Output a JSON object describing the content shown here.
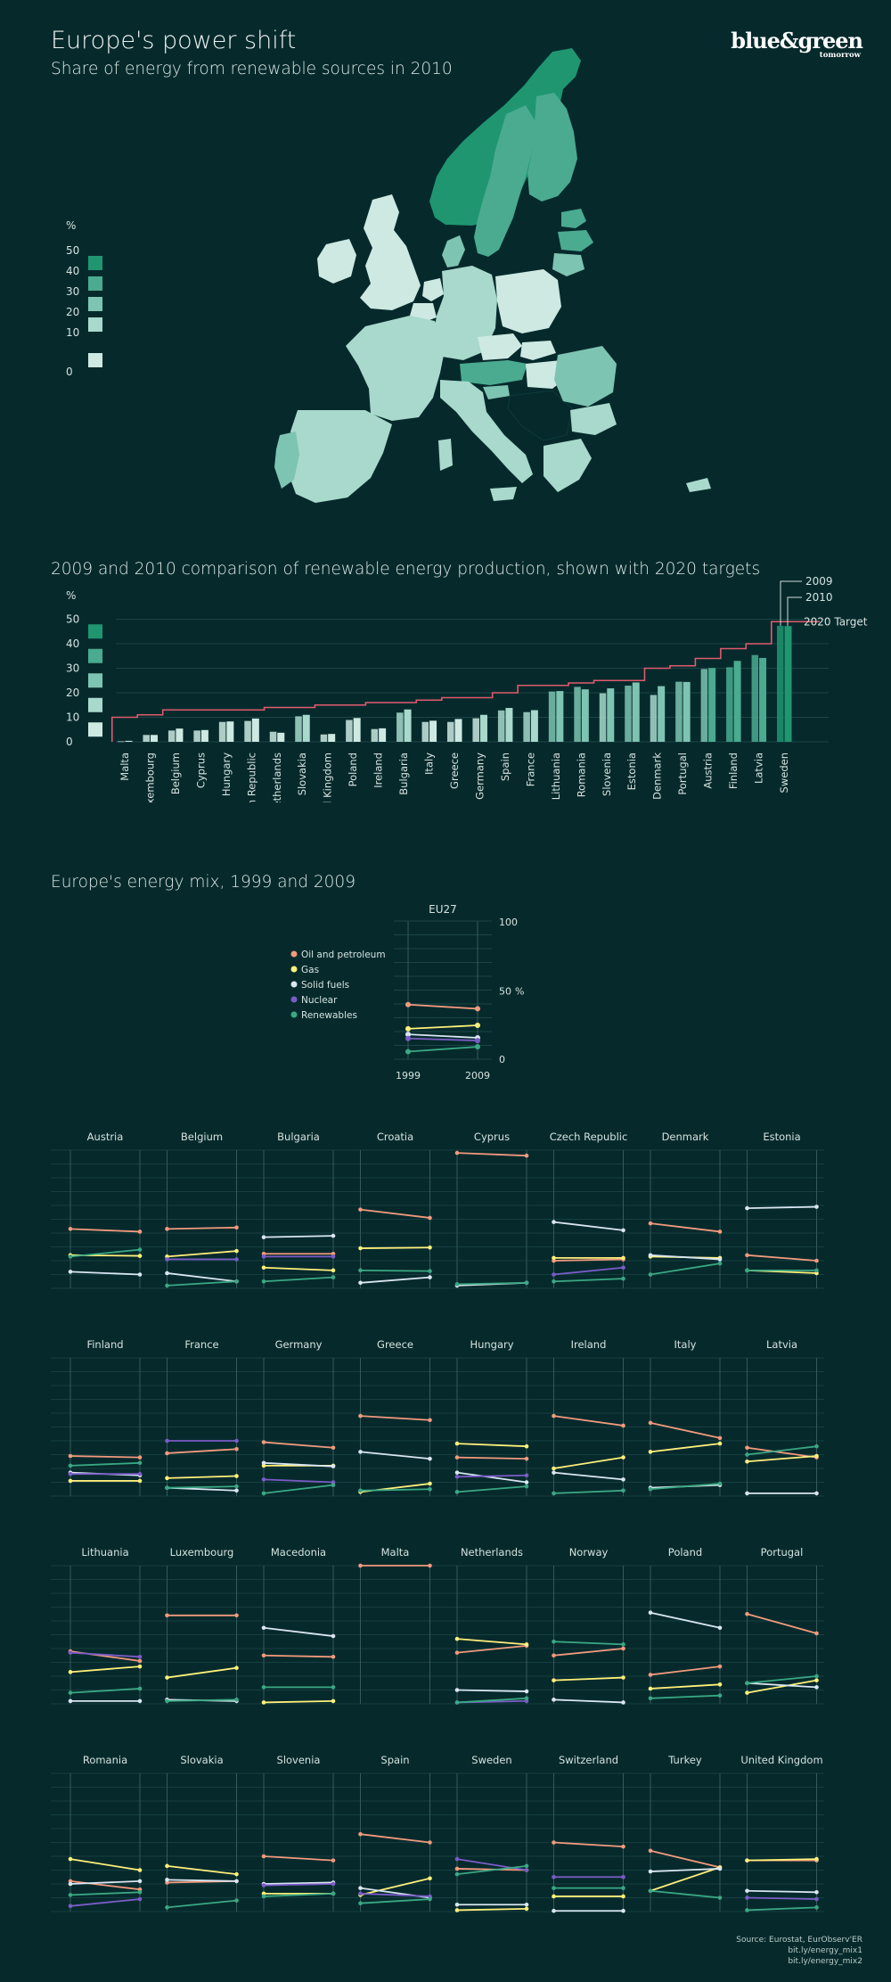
{
  "header": {
    "title": "Europe's power shift",
    "subtitle": "Share of energy from renewable sources in 2010",
    "logo_main": "blue&green",
    "logo_sub": "tomorrow"
  },
  "colors": {
    "background": "#062a2c",
    "scale": [
      "#cde9e2",
      "#a8d9cc",
      "#7ec4b2",
      "#4aab90",
      "#1f9670"
    ],
    "target_line": "#e05a6e",
    "oil": "#f29a7d",
    "gas": "#fff07a",
    "solid_fuels": "#d9e6f2",
    "nuclear": "#7a5cc7",
    "renewables": "#3aa884"
  },
  "map_legend": {
    "unit": "%",
    "ticks": [
      "50",
      "40",
      "30",
      "20",
      "10",
      "0"
    ]
  },
  "bar_section": {
    "title": "2009 and 2010 comparison of renewable energy production, shown with 2020 targets",
    "unit": "%",
    "ticks": [
      "50",
      "40",
      "30",
      "20",
      "10",
      "0"
    ],
    "label_2009": "2009",
    "label_2010": "2010",
    "label_target": "2020 Target"
  },
  "mix_section": {
    "title": "Europe's energy mix, 1999 and 2009",
    "eu_title": "EU27",
    "axis": [
      "100",
      "50",
      "0"
    ],
    "unit": "%",
    "year_start": "1999",
    "year_end": "2009",
    "legend": [
      "Oil and petroleum",
      "Gas",
      "Solid fuels",
      "Nuclear",
      "Renewables"
    ]
  },
  "source": {
    "line1": "Source: Eurostat, EurObserv'ER",
    "line2": "bit.ly/energy_mix1",
    "line3": "bit.ly/energy_mix2"
  },
  "chart_data": [
    {
      "type": "bar",
      "title": "2009 and 2010 comparison of renewable energy production, shown with 2020 targets",
      "ylabel": "%",
      "ylim": [
        0,
        50
      ],
      "grid": true,
      "categories": [
        "Malta",
        "Luxembourg",
        "Belgium",
        "Cyprus",
        "Hungary",
        "Czech Republic",
        "Netherlands",
        "Slovakia",
        "United Kingdom",
        "Poland",
        "Ireland",
        "Bulgaria",
        "Italy",
        "Greece",
        "Germany",
        "Spain",
        "France",
        "Lithuania",
        "Romania",
        "Slovenia",
        "Estonia",
        "Denmark",
        "Portugal",
        "Austria",
        "Finland",
        "Latvia",
        "Sweden"
      ],
      "series": [
        {
          "name": "2009",
          "values": [
            0.2,
            2.8,
            4.6,
            4.6,
            8.1,
            8.5,
            4.1,
            10.4,
            3.0,
            8.9,
            5.2,
            11.9,
            8.1,
            8.1,
            9.6,
            12.8,
            12.1,
            20.5,
            22.4,
            19.8,
            22.9,
            19.1,
            24.5,
            29.7,
            30.4,
            35.4,
            47.3
          ]
        },
        {
          "name": "2010",
          "values": [
            0.4,
            2.8,
            5.4,
            4.8,
            8.3,
            9.5,
            3.7,
            11.0,
            3.2,
            9.7,
            5.5,
            13.2,
            8.6,
            9.3,
            11.0,
            13.8,
            12.9,
            20.7,
            21.4,
            21.8,
            24.2,
            22.7,
            24.4,
            30.1,
            33.0,
            34.2,
            47.2
          ]
        },
        {
          "name": "2020 Target",
          "values": [
            10,
            11,
            13,
            13,
            13,
            13,
            14,
            14,
            15,
            15,
            16,
            16,
            17,
            18,
            18,
            20,
            23,
            23,
            24,
            25,
            25,
            30,
            31,
            34,
            38,
            40,
            49
          ]
        }
      ]
    },
    {
      "type": "line",
      "title": "EU27",
      "x": [
        "1999",
        "2009"
      ],
      "ylim": [
        0,
        100
      ],
      "ylabel": "%",
      "series": [
        {
          "name": "Oil and petroleum",
          "values": [
            39.5,
            36.5
          ]
        },
        {
          "name": "Gas",
          "values": [
            22,
            24.5
          ]
        },
        {
          "name": "Solid fuels",
          "values": [
            18,
            15.5
          ]
        },
        {
          "name": "Nuclear",
          "values": [
            15,
            13.5
          ]
        },
        {
          "name": "Renewables",
          "values": [
            5.5,
            9
          ]
        }
      ]
    },
    {
      "type": "line",
      "title": "Europe's energy mix, 1999 and 2009",
      "x": [
        "1999",
        "2009"
      ],
      "ylim": [
        0,
        100
      ],
      "series_order": [
        "Oil and petroleum",
        "Gas",
        "Solid fuels",
        "Nuclear",
        "Renewables"
      ],
      "countries": [
        {
          "name": "Austria",
          "values": [
            [
              43,
              41
            ],
            [
              24,
              23.5
            ],
            [
              12,
              10
            ],
            [
              null,
              null
            ],
            [
              23,
              28
            ]
          ]
        },
        {
          "name": "Belgium",
          "values": [
            [
              43,
              44
            ],
            [
              23,
              27
            ],
            [
              11,
              5
            ],
            [
              21,
              21
            ],
            [
              2,
              5
            ]
          ]
        },
        {
          "name": "Bulgaria",
          "values": [
            [
              25,
              25
            ],
            [
              15,
              13
            ],
            [
              37,
              38
            ],
            [
              23,
              23
            ],
            [
              5,
              8
            ]
          ]
        },
        {
          "name": "Croatia",
          "values": [
            [
              57,
              51
            ],
            [
              29,
              29.5
            ],
            [
              4,
              8
            ],
            [
              null,
              null
            ],
            [
              13,
              12.5
            ]
          ]
        },
        {
          "name": "Cyprus",
          "values": [
            [
              98,
              96
            ],
            [
              null,
              null
            ],
            [
              2,
              4
            ],
            [
              null,
              null
            ],
            [
              3,
              4
            ]
          ]
        },
        {
          "name": "Czech Republic",
          "values": [
            [
              20,
              21
            ],
            [
              22,
              22
            ],
            [
              48,
              42
            ],
            [
              10,
              15
            ],
            [
              5,
              7
            ]
          ]
        },
        {
          "name": "Denmark",
          "values": [
            [
              47,
              41
            ],
            [
              23,
              22
            ],
            [
              24,
              21
            ],
            [
              null,
              null
            ],
            [
              10,
              18
            ]
          ]
        },
        {
          "name": "Estonia",
          "values": [
            [
              24,
              20
            ],
            [
              13,
              11
            ],
            [
              58,
              59
            ],
            [
              null,
              null
            ],
            [
              13,
              13
            ]
          ]
        },
        {
          "name": "Finland",
          "values": [
            [
              29,
              28
            ],
            [
              11,
              11
            ],
            [
              17,
              15
            ],
            [
              16,
              16
            ],
            [
              22,
              24
            ]
          ]
        },
        {
          "name": "France",
          "values": [
            [
              31,
              34
            ],
            [
              13,
              14.5
            ],
            [
              6,
              4
            ],
            [
              40,
              40
            ],
            [
              6,
              7
            ]
          ]
        },
        {
          "name": "Germany",
          "values": [
            [
              39,
              35
            ],
            [
              22,
              22
            ],
            [
              24,
              21.5
            ],
            [
              12,
              10
            ],
            [
              2,
              8
            ]
          ]
        },
        {
          "name": "Greece",
          "values": [
            [
              58,
              55
            ],
            [
              3,
              9
            ],
            [
              32,
              27
            ],
            [
              null,
              null
            ],
            [
              4,
              5
            ]
          ]
        },
        {
          "name": "Hungary",
          "values": [
            [
              28,
              27
            ],
            [
              38,
              36
            ],
            [
              17,
              10
            ],
            [
              14,
              15
            ],
            [
              3,
              7
            ]
          ]
        },
        {
          "name": "Ireland",
          "values": [
            [
              58,
              51
            ],
            [
              20,
              28
            ],
            [
              17,
              12
            ],
            [
              null,
              null
            ],
            [
              2,
              4
            ]
          ]
        },
        {
          "name": "Italy",
          "values": [
            [
              53,
              42
            ],
            [
              32,
              38
            ],
            [
              6,
              8
            ],
            [
              null,
              null
            ],
            [
              5,
              9
            ]
          ]
        },
        {
          "name": "Latvia",
          "values": [
            [
              35,
              28
            ],
            [
              25,
              29
            ],
            [
              2,
              2
            ],
            [
              null,
              null
            ],
            [
              30,
              36
            ]
          ]
        },
        {
          "name": "Lithuania",
          "values": [
            [
              38,
              31
            ],
            [
              23,
              27
            ],
            [
              2,
              2
            ],
            [
              37,
              34
            ],
            [
              8,
              11
            ]
          ]
        },
        {
          "name": "Luxembourg",
          "values": [
            [
              64,
              64
            ],
            [
              19,
              26
            ],
            [
              3,
              2
            ],
            [
              null,
              null
            ],
            [
              2,
              3
            ]
          ]
        },
        {
          "name": "Macedonia",
          "values": [
            [
              35,
              34
            ],
            [
              1,
              2
            ],
            [
              55,
              49
            ],
            [
              null,
              null
            ],
            [
              12,
              12
            ]
          ]
        },
        {
          "name": "Malta",
          "values": [
            [
              100,
              100
            ],
            [
              null,
              null
            ],
            [
              null,
              null
            ],
            [
              null,
              null
            ],
            [
              null,
              null
            ]
          ]
        },
        {
          "name": "Netherlands",
          "values": [
            [
              37,
              42
            ],
            [
              47,
              43
            ],
            [
              10,
              9
            ],
            [
              1,
              2
            ],
            [
              1,
              4
            ]
          ]
        },
        {
          "name": "Norway",
          "values": [
            [
              35,
              40
            ],
            [
              17,
              19
            ],
            [
              3,
              1
            ],
            [
              null,
              null
            ],
            [
              45,
              43
            ]
          ]
        },
        {
          "name": "Poland",
          "values": [
            [
              21,
              27
            ],
            [
              11,
              14
            ],
            [
              66,
              55
            ],
            [
              null,
              null
            ],
            [
              4,
              6
            ]
          ]
        },
        {
          "name": "Portugal",
          "values": [
            [
              65,
              51
            ],
            [
              8,
              17
            ],
            [
              15,
              12
            ],
            [
              null,
              null
            ],
            [
              15,
              20
            ]
          ]
        },
        {
          "name": "Romania",
          "values": [
            [
              22,
              16
            ],
            [
              38,
              30
            ],
            [
              20,
              22
            ],
            [
              4,
              9
            ],
            [
              12,
              14
            ]
          ]
        },
        {
          "name": "Slovakia",
          "values": [
            [
              21,
              22
            ],
            [
              33,
              27
            ],
            [
              23,
              22
            ],
            [
              null,
              null
            ],
            [
              3,
              8
            ]
          ]
        },
        {
          "name": "Slovenia",
          "values": [
            [
              40,
              37
            ],
            [
              13,
              13
            ],
            [
              20,
              21
            ],
            [
              19,
              20
            ],
            [
              11,
              13
            ]
          ]
        },
        {
          "name": "Spain",
          "values": [
            [
              56,
              50
            ],
            [
              12,
              24
            ],
            [
              17,
              10
            ],
            [
              13,
              11
            ],
            [
              6,
              9
            ]
          ]
        },
        {
          "name": "Sweden",
          "values": [
            [
              31,
              30
            ],
            [
              1,
              2
            ],
            [
              5,
              5
            ],
            [
              38,
              30
            ],
            [
              27,
              33
            ]
          ]
        },
        {
          "name": "Switzerland",
          "values": [
            [
              50,
              47
            ],
            [
              11,
              11
            ],
            [
              0.5,
              0.5
            ],
            [
              25,
              25
            ],
            [
              17,
              17
            ]
          ]
        },
        {
          "name": "Turkey",
          "values": [
            [
              44,
              32
            ],
            [
              15,
              32
            ],
            [
              29,
              31
            ],
            [
              null,
              null
            ],
            [
              15,
              10
            ]
          ]
        },
        {
          "name": "United Kingdom",
          "values": [
            [
              37,
              37
            ],
            [
              37,
              38
            ],
            [
              15,
              14
            ],
            [
              10,
              9
            ],
            [
              1,
              3
            ]
          ]
        }
      ]
    }
  ]
}
